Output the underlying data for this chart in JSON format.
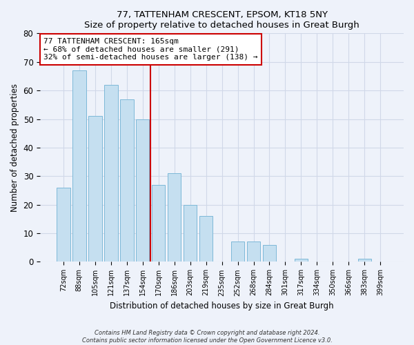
{
  "title": "77, TATTENHAM CRESCENT, EPSOM, KT18 5NY",
  "subtitle": "Size of property relative to detached houses in Great Burgh",
  "xlabel": "Distribution of detached houses by size in Great Burgh",
  "ylabel": "Number of detached properties",
  "categories": [
    "72sqm",
    "88sqm",
    "105sqm",
    "121sqm",
    "137sqm",
    "154sqm",
    "170sqm",
    "186sqm",
    "203sqm",
    "219sqm",
    "235sqm",
    "252sqm",
    "268sqm",
    "284sqm",
    "301sqm",
    "317sqm",
    "334sqm",
    "350sqm",
    "366sqm",
    "383sqm",
    "399sqm"
  ],
  "values": [
    26,
    67,
    51,
    62,
    57,
    50,
    27,
    31,
    20,
    16,
    0,
    7,
    7,
    6,
    0,
    1,
    0,
    0,
    0,
    1,
    0
  ],
  "bar_color": "#c5dff0",
  "bar_edge_color": "#7db8d8",
  "vline_color": "#cc0000",
  "vline_x": 5.5,
  "ylim": [
    0,
    80
  ],
  "yticks": [
    0,
    10,
    20,
    30,
    40,
    50,
    60,
    70,
    80
  ],
  "annotation_line1": "77 TATTENHAM CRESCENT: 165sqm",
  "annotation_line2": "← 68% of detached houses are smaller (291)",
  "annotation_line3": "32% of semi-detached houses are larger (138) →",
  "footer_line1": "Contains HM Land Registry data © Crown copyright and database right 2024.",
  "footer_line2": "Contains public sector information licensed under the Open Government Licence v3.0.",
  "background_color": "#eef2fa",
  "plot_bg_color": "#eef2fa",
  "grid_color": "#d0d8e8"
}
